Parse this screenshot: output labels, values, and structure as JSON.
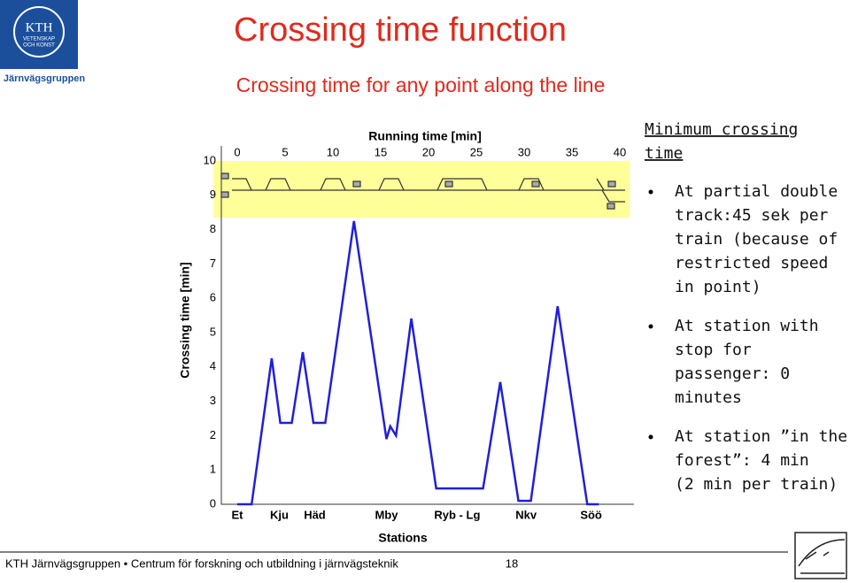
{
  "slide": {
    "title": "Crossing time function",
    "subtitle": "Crossing time for any point along the line",
    "logo": {
      "name": "KTH",
      "motto": [
        "VETENSKAP",
        "OCH KONST"
      ],
      "group": "Järnvägsgruppen"
    },
    "notes": {
      "heading": [
        "Minimum crossing",
        "time"
      ],
      "bullets": [
        [
          "At partial double",
          "track:45 sek per",
          "train (because of",
          "restricted speed",
          "in point)"
        ],
        [
          "At station with",
          "stop for",
          "passenger: 0",
          "minutes"
        ],
        [
          "At station ”in the",
          "forest”: 4 min",
          "(2 min per train)"
        ]
      ]
    },
    "footer": "KTH Järnvägsgruppen • Centrum för forskning och utbildning i järnvägsteknik",
    "page": "18"
  },
  "chart_data": {
    "type": "line",
    "x_axis_label": "Running time [min]",
    "y_axis_label": "Crossing time [min]",
    "category_axis_label": "Stations",
    "stations": [
      "Et",
      "Kju",
      "Häd",
      "Mby",
      "Ryb - Lg",
      "Nkv",
      "Söö"
    ],
    "station_x": [
      0,
      4.4,
      8.1,
      15.6,
      23.0,
      30.2,
      37.0
    ],
    "x": [
      0,
      1.5,
      3.6,
      4.5,
      5.7,
      6.85,
      7.96,
      9.2,
      12.2,
      15.6,
      16.0,
      16.6,
      18.2,
      20.8,
      25.7,
      27.5,
      29.4,
      30.7,
      33.5,
      36.6,
      37.8
    ],
    "series": [
      {
        "color": "#2020d8",
        "values": [
          0,
          0,
          4.25,
          2.37,
          2.37,
          4.43,
          2.37,
          2.37,
          8.25,
          1.9,
          2.27,
          2.0,
          5.41,
          0.46,
          0.46,
          3.56,
          0.1,
          0.1,
          5.77,
          0,
          0
        ]
      }
    ],
    "xlim": [
      -1.5,
      41.5
    ],
    "ylim": [
      0,
      10
    ],
    "xticks": [
      0,
      5,
      10,
      15,
      20,
      25,
      30,
      35,
      40
    ],
    "yticks": [
      0,
      1,
      2,
      3,
      4,
      5,
      6,
      7,
      8,
      9,
      10
    ]
  }
}
